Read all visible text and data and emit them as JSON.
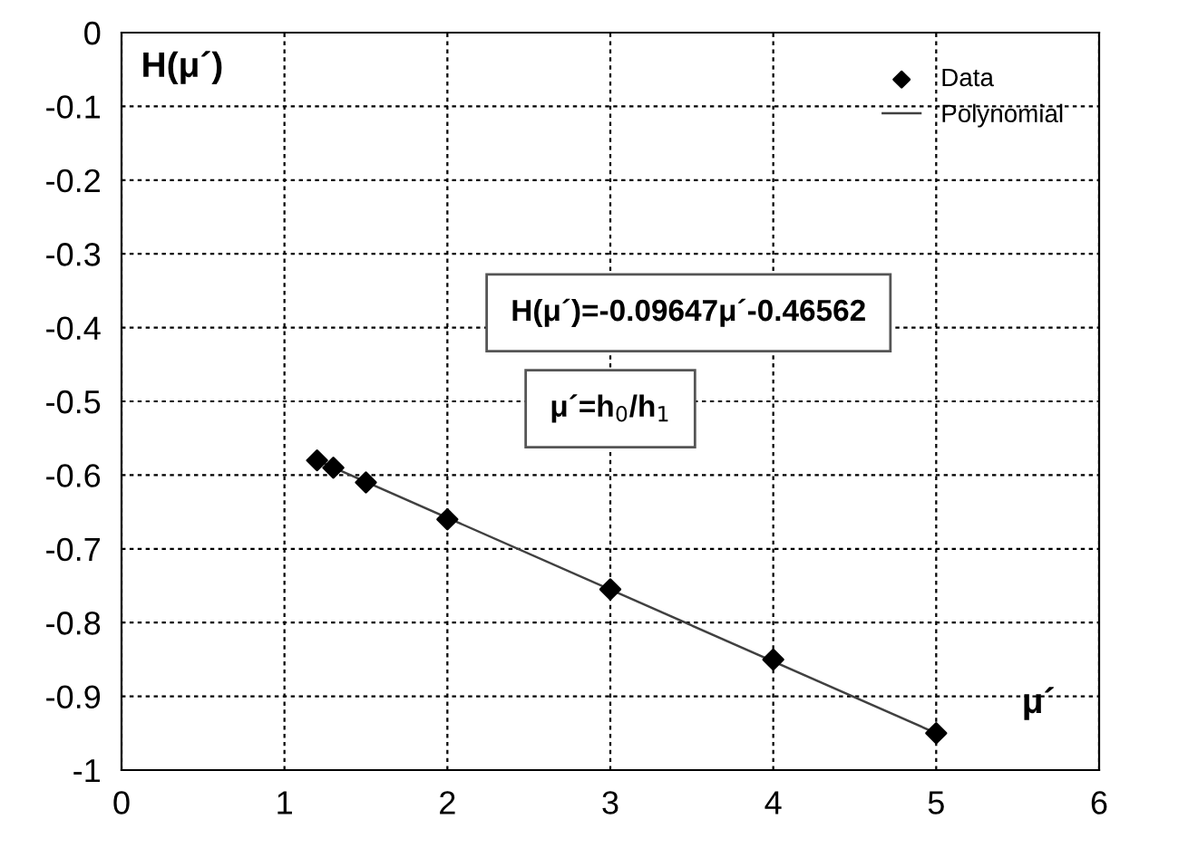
{
  "chart_data": {
    "type": "scatter",
    "xlabel": "μ´",
    "ylabel": "H(μ´)",
    "xlim": [
      0,
      6
    ],
    "xticks": [
      0,
      1,
      2,
      3,
      4,
      5,
      6
    ],
    "ylim": [
      -1,
      0
    ],
    "yticks": [
      -1,
      -0.9,
      -0.8,
      -0.7,
      -0.6,
      -0.5,
      -0.4,
      -0.3,
      -0.2,
      -0.1,
      0
    ],
    "grid": true,
    "legend": "top right",
    "series": [
      {
        "name": "Data",
        "marker": "diamond",
        "color": "#000000",
        "x": [
          1.2,
          1.3,
          1.5,
          2,
          3,
          4,
          5
        ],
        "values": [
          -0.58,
          -0.59,
          -0.61,
          -0.66,
          -0.755,
          -0.85,
          -0.95
        ]
      },
      {
        "name": "Polynomial",
        "type": "line",
        "marker": "none",
        "line_style": "solid",
        "color": "#404040",
        "x": [
          1.2,
          5
        ],
        "values": [
          -0.58,
          -0.95
        ]
      }
    ],
    "annotations": [
      "H(μ´)=-0.09647μ´-0.46562",
      "μ´=h$_{0}$/h$_{1}$"
    ]
  }
}
